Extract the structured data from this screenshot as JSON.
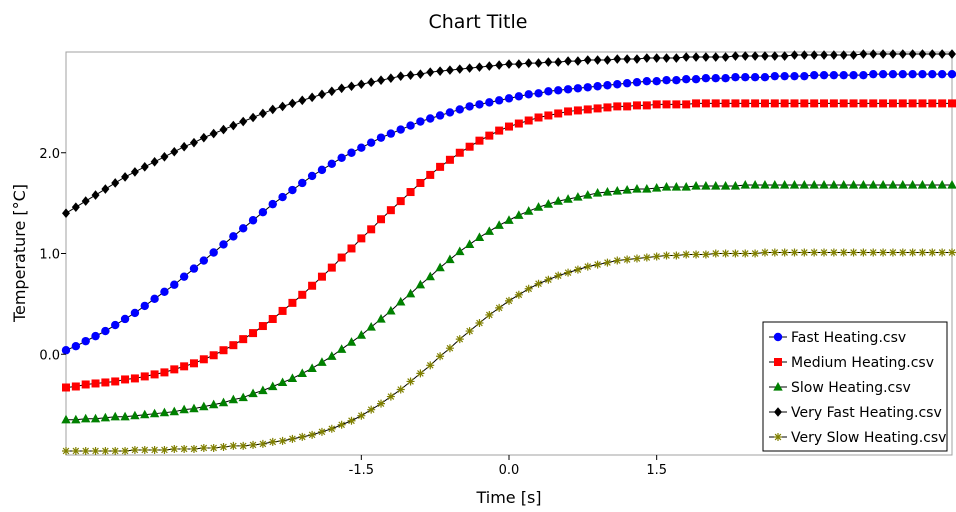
{
  "chart_data": {
    "type": "line",
    "title": "Chart Title",
    "xlabel": "Time [s]",
    "ylabel": "Temperature [°C]",
    "xlim": [
      -4.5,
      4.5
    ],
    "ylim": [
      -1.0,
      3.0
    ],
    "xticks": [
      -1.5,
      0.0,
      1.5
    ],
    "xtick_labels": [
      "-1.5",
      "0.0",
      "1.5"
    ],
    "yticks": [
      0.0,
      1.0,
      2.0
    ],
    "ytick_labels": [
      "0.0",
      "1.0",
      "2.0"
    ],
    "grid": false,
    "legend_position": "bottom-right",
    "series": [
      {
        "name": "Fast Heating.csv",
        "color": "#0000ff",
        "marker": "circle",
        "y": [
          0.04,
          0.08,
          0.13,
          0.18,
          0.23,
          0.29,
          0.35,
          0.41,
          0.48,
          0.55,
          0.62,
          0.69,
          0.77,
          0.85,
          0.93,
          1.01,
          1.09,
          1.17,
          1.25,
          1.33,
          1.41,
          1.49,
          1.56,
          1.63,
          1.7,
          1.77,
          1.83,
          1.89,
          1.95,
          2.0,
          2.05,
          2.1,
          2.15,
          2.19,
          2.23,
          2.27,
          2.31,
          2.34,
          2.37,
          2.4,
          2.43,
          2.46,
          2.48,
          2.5,
          2.52,
          2.54,
          2.56,
          2.58,
          2.59,
          2.61,
          2.62,
          2.63,
          2.64,
          2.65,
          2.66,
          2.67,
          2.68,
          2.69,
          2.7,
          2.71,
          2.71,
          2.72,
          2.72,
          2.73,
          2.73,
          2.74,
          2.74,
          2.74,
          2.75,
          2.75,
          2.75,
          2.75,
          2.76,
          2.76,
          2.76,
          2.76,
          2.77,
          2.77,
          2.77,
          2.77,
          2.77,
          2.77,
          2.78,
          2.78,
          2.78,
          2.78,
          2.78,
          2.78,
          2.78,
          2.78,
          2.78
        ]
      },
      {
        "name": "Medium Heating.csv",
        "color": "#ff0000",
        "marker": "square",
        "y": [
          -0.33,
          -0.32,
          -0.3,
          -0.29,
          -0.28,
          -0.27,
          -0.25,
          -0.24,
          -0.22,
          -0.2,
          -0.18,
          -0.15,
          -0.12,
          -0.09,
          -0.05,
          -0.01,
          0.04,
          0.09,
          0.15,
          0.21,
          0.28,
          0.35,
          0.43,
          0.51,
          0.59,
          0.68,
          0.77,
          0.86,
          0.96,
          1.05,
          1.15,
          1.24,
          1.34,
          1.43,
          1.52,
          1.61,
          1.7,
          1.78,
          1.86,
          1.93,
          2.0,
          2.06,
          2.12,
          2.17,
          2.22,
          2.26,
          2.29,
          2.32,
          2.35,
          2.37,
          2.39,
          2.41,
          2.42,
          2.43,
          2.44,
          2.45,
          2.46,
          2.46,
          2.47,
          2.47,
          2.48,
          2.48,
          2.48,
          2.48,
          2.49,
          2.49,
          2.49,
          2.49,
          2.49,
          2.49,
          2.49,
          2.49,
          2.49,
          2.49,
          2.49,
          2.49,
          2.49,
          2.49,
          2.49,
          2.49,
          2.49,
          2.49,
          2.49,
          2.49,
          2.49,
          2.49,
          2.49,
          2.49,
          2.49,
          2.49,
          2.49
        ]
      },
      {
        "name": "Slow Heating.csv",
        "color": "#008000",
        "marker": "triangle",
        "y": [
          -0.65,
          -0.65,
          -0.64,
          -0.64,
          -0.63,
          -0.62,
          -0.62,
          -0.61,
          -0.6,
          -0.59,
          -0.58,
          -0.57,
          -0.55,
          -0.54,
          -0.52,
          -0.5,
          -0.48,
          -0.45,
          -0.43,
          -0.39,
          -0.36,
          -0.32,
          -0.28,
          -0.24,
          -0.19,
          -0.14,
          -0.08,
          -0.02,
          0.05,
          0.12,
          0.19,
          0.27,
          0.35,
          0.43,
          0.52,
          0.6,
          0.69,
          0.77,
          0.86,
          0.94,
          1.02,
          1.09,
          1.16,
          1.22,
          1.28,
          1.33,
          1.38,
          1.42,
          1.46,
          1.49,
          1.52,
          1.54,
          1.56,
          1.58,
          1.6,
          1.61,
          1.62,
          1.63,
          1.64,
          1.64,
          1.65,
          1.66,
          1.66,
          1.66,
          1.67,
          1.67,
          1.67,
          1.67,
          1.67,
          1.68,
          1.68,
          1.68,
          1.68,
          1.68,
          1.68,
          1.68,
          1.68,
          1.68,
          1.68,
          1.68,
          1.68,
          1.68,
          1.68,
          1.68,
          1.68,
          1.68,
          1.68,
          1.68,
          1.68,
          1.68,
          1.68
        ]
      },
      {
        "name": "Very Fast Heating.csv",
        "color": "#000000",
        "marker": "diamond",
        "y": [
          1.4,
          1.46,
          1.52,
          1.58,
          1.64,
          1.7,
          1.76,
          1.81,
          1.86,
          1.91,
          1.96,
          2.01,
          2.06,
          2.1,
          2.15,
          2.19,
          2.23,
          2.27,
          2.31,
          2.35,
          2.39,
          2.43,
          2.46,
          2.49,
          2.52,
          2.55,
          2.58,
          2.61,
          2.64,
          2.66,
          2.68,
          2.7,
          2.72,
          2.74,
          2.76,
          2.77,
          2.78,
          2.8,
          2.81,
          2.82,
          2.83,
          2.84,
          2.85,
          2.86,
          2.87,
          2.88,
          2.88,
          2.89,
          2.89,
          2.9,
          2.9,
          2.91,
          2.91,
          2.92,
          2.92,
          2.92,
          2.93,
          2.93,
          2.93,
          2.94,
          2.94,
          2.94,
          2.94,
          2.95,
          2.95,
          2.95,
          2.95,
          2.95,
          2.96,
          2.96,
          2.96,
          2.96,
          2.96,
          2.96,
          2.97,
          2.97,
          2.97,
          2.97,
          2.97,
          2.97,
          2.97,
          2.98,
          2.98,
          2.98,
          2.98,
          2.98,
          2.98,
          2.98,
          2.98,
          2.98,
          2.98
        ]
      },
      {
        "name": "Very Slow Heating.csv",
        "color": "#808000",
        "marker": "star",
        "y": [
          -0.96,
          -0.96,
          -0.96,
          -0.96,
          -0.96,
          -0.96,
          -0.96,
          -0.95,
          -0.95,
          -0.95,
          -0.95,
          -0.94,
          -0.94,
          -0.94,
          -0.93,
          -0.93,
          -0.92,
          -0.91,
          -0.91,
          -0.9,
          -0.89,
          -0.87,
          -0.86,
          -0.84,
          -0.82,
          -0.8,
          -0.77,
          -0.74,
          -0.7,
          -0.66,
          -0.61,
          -0.55,
          -0.49,
          -0.42,
          -0.35,
          -0.27,
          -0.19,
          -0.11,
          -0.02,
          0.06,
          0.15,
          0.23,
          0.31,
          0.39,
          0.46,
          0.53,
          0.59,
          0.65,
          0.7,
          0.74,
          0.78,
          0.81,
          0.84,
          0.87,
          0.89,
          0.91,
          0.93,
          0.94,
          0.95,
          0.96,
          0.97,
          0.98,
          0.98,
          0.99,
          0.99,
          0.99,
          1.0,
          1.0,
          1.0,
          1.0,
          1.0,
          1.01,
          1.01,
          1.01,
          1.01,
          1.01,
          1.01,
          1.01,
          1.01,
          1.01,
          1.01,
          1.01,
          1.01,
          1.01,
          1.01,
          1.01,
          1.01,
          1.01,
          1.01,
          1.01,
          1.01
        ]
      }
    ]
  }
}
